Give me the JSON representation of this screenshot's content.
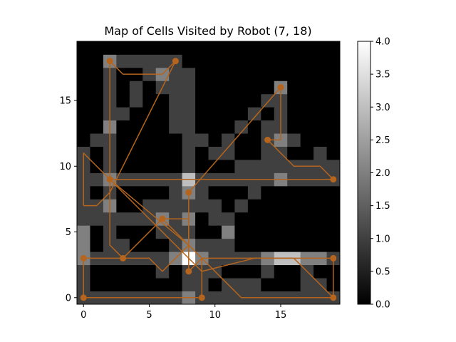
{
  "chart_data": {
    "type": "heatmap",
    "title": "Map of Cells Visited by Robot (7, 18)",
    "xlabel": "",
    "ylabel": "",
    "xlim": [
      -0.5,
      19.5
    ],
    "ylim": [
      -0.5,
      19.5
    ],
    "xticks": [
      0,
      5,
      10,
      15
    ],
    "yticks": [
      0,
      5,
      10,
      15
    ],
    "grid": false,
    "origin": "lower",
    "colormap": "gray",
    "colorbar": {
      "min": 0,
      "max": 4,
      "ticks": [
        0.0,
        0.5,
        1.0,
        1.5,
        2.0,
        2.5,
        3.0,
        3.5,
        4.0
      ],
      "tick_labels": [
        "0.0",
        "0.5",
        "1.0",
        "1.5",
        "2.0",
        "2.5",
        "3.0",
        "3.5",
        "4.0"
      ]
    },
    "path_color": "#b5651d",
    "grid_values": [
      [
        1,
        1,
        1,
        1,
        1,
        1,
        1,
        1,
        2,
        1,
        1,
        1,
        1,
        1,
        1,
        1,
        1,
        1,
        1,
        1
      ],
      [
        1,
        0,
        0,
        0,
        0,
        0,
        0,
        0,
        1,
        1,
        0,
        1,
        1,
        1,
        0,
        0,
        0,
        1,
        1,
        0
      ],
      [
        1,
        0,
        0,
        0,
        0,
        0,
        1,
        0,
        1,
        1,
        1,
        0,
        0,
        0,
        1,
        0,
        0,
        1,
        0,
        0
      ],
      [
        2,
        1,
        1,
        1,
        1,
        1,
        1,
        2,
        4,
        2,
        1,
        1,
        1,
        1,
        2,
        3,
        3,
        2,
        2,
        1
      ],
      [
        2,
        0,
        1,
        1,
        0,
        0,
        0,
        1,
        2,
        1,
        1,
        1,
        0,
        0,
        0,
        0,
        0,
        0,
        0,
        0
      ],
      [
        2,
        0,
        1,
        0,
        0,
        0,
        1,
        1,
        1,
        0,
        0,
        2,
        0,
        0,
        0,
        0,
        0,
        0,
        0,
        0
      ],
      [
        1,
        1,
        1,
        1,
        1,
        1,
        2,
        1,
        2,
        0,
        1,
        1,
        0,
        0,
        0,
        0,
        0,
        0,
        0,
        0
      ],
      [
        1,
        1,
        2,
        0,
        0,
        1,
        1,
        1,
        1,
        1,
        1,
        0,
        1,
        0,
        0,
        0,
        0,
        0,
        0,
        0
      ],
      [
        1,
        0,
        1,
        0,
        0,
        0,
        0,
        1,
        2,
        1,
        0,
        0,
        0,
        1,
        0,
        0,
        0,
        0,
        0,
        0
      ],
      [
        1,
        1,
        2,
        1,
        1,
        1,
        1,
        1,
        3,
        1,
        1,
        1,
        1,
        1,
        1,
        2,
        1,
        1,
        1,
        1
      ],
      [
        1,
        0,
        1,
        0,
        0,
        0,
        0,
        0,
        1,
        0,
        0,
        0,
        1,
        1,
        1,
        1,
        1,
        1,
        1,
        1
      ],
      [
        1,
        0,
        1,
        0,
        0,
        0,
        0,
        0,
        1,
        0,
        1,
        1,
        0,
        0,
        1,
        1,
        0,
        0,
        1,
        0
      ],
      [
        0,
        1,
        1,
        0,
        0,
        0,
        0,
        0,
        1,
        1,
        0,
        1,
        0,
        0,
        1,
        2,
        1,
        0,
        0,
        0
      ],
      [
        0,
        0,
        2,
        0,
        0,
        0,
        0,
        1,
        1,
        0,
        0,
        0,
        1,
        0,
        1,
        1,
        0,
        0,
        0,
        0
      ],
      [
        0,
        0,
        1,
        1,
        0,
        0,
        0,
        1,
        1,
        0,
        0,
        0,
        0,
        1,
        0,
        1,
        0,
        0,
        0,
        0
      ],
      [
        0,
        0,
        1,
        0,
        1,
        0,
        0,
        1,
        1,
        0,
        0,
        0,
        0,
        0,
        1,
        1,
        0,
        0,
        0,
        0
      ],
      [
        0,
        0,
        1,
        0,
        1,
        0,
        1,
        1,
        1,
        0,
        0,
        0,
        0,
        0,
        0,
        2,
        0,
        0,
        0,
        0
      ],
      [
        0,
        0,
        1,
        0,
        0,
        1,
        2,
        1,
        1,
        0,
        0,
        0,
        0,
        0,
        0,
        0,
        0,
        0,
        0,
        0
      ],
      [
        0,
        0,
        2,
        1,
        1,
        1,
        1,
        1,
        0,
        0,
        0,
        0,
        0,
        0,
        0,
        0,
        0,
        0,
        0,
        0
      ],
      [
        0,
        0,
        0,
        0,
        0,
        0,
        0,
        0,
        0,
        0,
        0,
        0,
        0,
        0,
        0,
        0,
        0,
        0,
        0,
        0
      ]
    ],
    "waypoints": [
      {
        "x": 7,
        "y": 18
      },
      {
        "x": 2,
        "y": 18
      },
      {
        "x": 2,
        "y": 9
      },
      {
        "x": 19,
        "y": 9
      },
      {
        "x": 14,
        "y": 12
      },
      {
        "x": 15,
        "y": 16
      },
      {
        "x": 8,
        "y": 8
      },
      {
        "x": 8,
        "y": 2
      },
      {
        "x": 9,
        "y": 0
      },
      {
        "x": 0,
        "y": 0
      },
      {
        "x": 0,
        "y": 3
      },
      {
        "x": 3,
        "y": 3
      },
      {
        "x": 6,
        "y": 6
      },
      {
        "x": 19,
        "y": 3
      },
      {
        "x": 19,
        "y": 0
      }
    ],
    "path_segments": [
      [
        [
          7,
          18
        ],
        [
          6,
          17
        ],
        [
          3,
          17
        ],
        [
          2,
          18
        ]
      ],
      [
        [
          2,
          18
        ],
        [
          2,
          9
        ]
      ],
      [
        [
          2,
          9
        ],
        [
          19,
          9
        ]
      ],
      [
        [
          19,
          9
        ],
        [
          18,
          10
        ],
        [
          16,
          10
        ],
        [
          15,
          11
        ],
        [
          14,
          12
        ]
      ],
      [
        [
          14,
          12
        ],
        [
          15,
          12
        ],
        [
          15,
          16
        ]
      ],
      [
        [
          15,
          16
        ],
        [
          8,
          8
        ]
      ],
      [
        [
          8,
          8
        ],
        [
          8,
          2
        ]
      ],
      [
        [
          8,
          2
        ],
        [
          9,
          3
        ],
        [
          9,
          0
        ]
      ],
      [
        [
          9,
          0
        ],
        [
          0,
          0
        ]
      ],
      [
        [
          0,
          0
        ],
        [
          0,
          3
        ]
      ],
      [
        [
          0,
          3
        ],
        [
          3,
          3
        ]
      ],
      [
        [
          3,
          3
        ],
        [
          6,
          6
        ]
      ],
      [
        [
          6,
          6
        ],
        [
          9,
          3
        ],
        [
          19,
          3
        ]
      ],
      [
        [
          19,
          3
        ],
        [
          19,
          0
        ]
      ],
      [
        [
          19,
          0
        ],
        [
          12,
          0
        ],
        [
          11,
          1
        ],
        [
          8,
          4
        ],
        [
          2,
          9
        ],
        [
          0,
          11
        ],
        [
          0,
          7
        ]
      ],
      [
        [
          0,
          7
        ],
        [
          1,
          7
        ],
        [
          2,
          8
        ],
        [
          7,
          18
        ]
      ],
      [
        [
          2,
          9
        ],
        [
          2,
          4
        ],
        [
          3,
          3
        ]
      ],
      [
        [
          3,
          3
        ],
        [
          5,
          3
        ],
        [
          6,
          2
        ],
        [
          8,
          4
        ]
      ],
      [
        [
          6,
          6
        ],
        [
          8,
          6
        ],
        [
          8,
          4
        ]
      ],
      [
        [
          2,
          9
        ],
        [
          9,
          2
        ],
        [
          13,
          3
        ],
        [
          15,
          3
        ],
        [
          16,
          3
        ],
        [
          19,
          0
        ]
      ]
    ]
  }
}
